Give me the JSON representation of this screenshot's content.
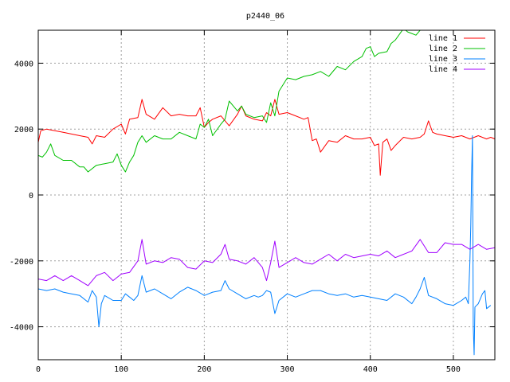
{
  "chart_data": {
    "type": "line",
    "title": "p2440_06",
    "xlabel": "",
    "ylabel": "",
    "xlim": [
      0,
      550
    ],
    "ylim": [
      -5000,
      5000
    ],
    "xticks": [
      0,
      100,
      200,
      300,
      400,
      500
    ],
    "yticks": [
      -4000,
      -2000,
      0,
      2000,
      4000
    ],
    "xtick_labels": [
      "0",
      "100",
      "200",
      "300",
      "400",
      "500"
    ],
    "ytick_labels": [
      "-4000",
      "-2000",
      "0",
      "2000",
      "4000"
    ],
    "grid": true,
    "legend_position": "top-right",
    "series": [
      {
        "name": "line 1",
        "color": "#ff0000",
        "points": [
          [
            0,
            1600
          ],
          [
            3,
            1950
          ],
          [
            10,
            2000
          ],
          [
            20,
            1950
          ],
          [
            30,
            1900
          ],
          [
            40,
            1850
          ],
          [
            50,
            1800
          ],
          [
            60,
            1750
          ],
          [
            65,
            1550
          ],
          [
            70,
            1800
          ],
          [
            80,
            1750
          ],
          [
            90,
            2000
          ],
          [
            100,
            2150
          ],
          [
            105,
            1850
          ],
          [
            110,
            2300
          ],
          [
            120,
            2350
          ],
          [
            125,
            2900
          ],
          [
            130,
            2450
          ],
          [
            140,
            2300
          ],
          [
            150,
            2650
          ],
          [
            160,
            2400
          ],
          [
            170,
            2450
          ],
          [
            180,
            2400
          ],
          [
            190,
            2400
          ],
          [
            195,
            2650
          ],
          [
            200,
            2050
          ],
          [
            205,
            2200
          ],
          [
            210,
            2300
          ],
          [
            220,
            2400
          ],
          [
            230,
            2100
          ],
          [
            240,
            2450
          ],
          [
            245,
            2700
          ],
          [
            250,
            2400
          ],
          [
            260,
            2300
          ],
          [
            270,
            2250
          ],
          [
            275,
            2500
          ],
          [
            280,
            2400
          ],
          [
            285,
            2900
          ],
          [
            290,
            2450
          ],
          [
            300,
            2500
          ],
          [
            310,
            2400
          ],
          [
            320,
            2300
          ],
          [
            325,
            2350
          ],
          [
            330,
            1650
          ],
          [
            335,
            1700
          ],
          [
            340,
            1300
          ],
          [
            350,
            1650
          ],
          [
            360,
            1600
          ],
          [
            370,
            1800
          ],
          [
            380,
            1700
          ],
          [
            390,
            1700
          ],
          [
            400,
            1750
          ],
          [
            405,
            1500
          ],
          [
            410,
            1550
          ],
          [
            412,
            600
          ],
          [
            415,
            1600
          ],
          [
            420,
            1700
          ],
          [
            425,
            1350
          ],
          [
            430,
            1500
          ],
          [
            440,
            1750
          ],
          [
            450,
            1700
          ],
          [
            460,
            1750
          ],
          [
            465,
            1850
          ],
          [
            470,
            2250
          ],
          [
            475,
            1900
          ],
          [
            480,
            1850
          ],
          [
            490,
            1800
          ],
          [
            500,
            1750
          ],
          [
            510,
            1800
          ],
          [
            520,
            1700
          ],
          [
            530,
            1800
          ],
          [
            540,
            1700
          ],
          [
            545,
            1750
          ],
          [
            550,
            1700
          ]
        ]
      },
      {
        "name": "line 2",
        "color": "#00c000",
        "points": [
          [
            0,
            1200
          ],
          [
            5,
            1150
          ],
          [
            10,
            1300
          ],
          [
            15,
            1550
          ],
          [
            20,
            1200
          ],
          [
            30,
            1050
          ],
          [
            40,
            1050
          ],
          [
            50,
            850
          ],
          [
            55,
            850
          ],
          [
            60,
            700
          ],
          [
            70,
            900
          ],
          [
            80,
            950
          ],
          [
            90,
            1000
          ],
          [
            95,
            1250
          ],
          [
            100,
            900
          ],
          [
            105,
            700
          ],
          [
            110,
            1000
          ],
          [
            115,
            1200
          ],
          [
            120,
            1600
          ],
          [
            125,
            1800
          ],
          [
            130,
            1600
          ],
          [
            140,
            1800
          ],
          [
            150,
            1700
          ],
          [
            160,
            1700
          ],
          [
            170,
            1900
          ],
          [
            180,
            1800
          ],
          [
            190,
            1700
          ],
          [
            195,
            2150
          ],
          [
            200,
            2050
          ],
          [
            205,
            2300
          ],
          [
            210,
            1800
          ],
          [
            220,
            2150
          ],
          [
            225,
            2300
          ],
          [
            230,
            2850
          ],
          [
            240,
            2550
          ],
          [
            245,
            2700
          ],
          [
            250,
            2450
          ],
          [
            260,
            2350
          ],
          [
            270,
            2400
          ],
          [
            275,
            2200
          ],
          [
            280,
            2800
          ],
          [
            285,
            2400
          ],
          [
            290,
            3150
          ],
          [
            300,
            3550
          ],
          [
            310,
            3500
          ],
          [
            320,
            3600
          ],
          [
            330,
            3650
          ],
          [
            340,
            3750
          ],
          [
            350,
            3600
          ],
          [
            360,
            3900
          ],
          [
            370,
            3800
          ],
          [
            380,
            4050
          ],
          [
            390,
            4200
          ],
          [
            395,
            4450
          ],
          [
            400,
            4500
          ],
          [
            405,
            4200
          ],
          [
            410,
            4300
          ],
          [
            420,
            4350
          ],
          [
            425,
            4600
          ],
          [
            430,
            4700
          ],
          [
            440,
            5050
          ],
          [
            445,
            4950
          ],
          [
            450,
            4900
          ],
          [
            455,
            4850
          ],
          [
            460,
            5000
          ]
        ]
      },
      {
        "name": "line 3",
        "color": "#0080ff",
        "points": [
          [
            0,
            -2850
          ],
          [
            10,
            -2900
          ],
          [
            20,
            -2850
          ],
          [
            30,
            -2950
          ],
          [
            40,
            -3000
          ],
          [
            50,
            -3050
          ],
          [
            60,
            -3250
          ],
          [
            65,
            -2900
          ],
          [
            70,
            -3100
          ],
          [
            73,
            -4000
          ],
          [
            76,
            -3300
          ],
          [
            80,
            -3050
          ],
          [
            90,
            -3200
          ],
          [
            100,
            -3200
          ],
          [
            105,
            -3000
          ],
          [
            110,
            -3100
          ],
          [
            115,
            -3200
          ],
          [
            120,
            -3050
          ],
          [
            125,
            -2450
          ],
          [
            130,
            -2950
          ],
          [
            140,
            -2850
          ],
          [
            150,
            -3000
          ],
          [
            160,
            -3150
          ],
          [
            170,
            -2950
          ],
          [
            180,
            -2800
          ],
          [
            190,
            -2900
          ],
          [
            200,
            -3050
          ],
          [
            210,
            -2950
          ],
          [
            220,
            -2900
          ],
          [
            225,
            -2600
          ],
          [
            230,
            -2850
          ],
          [
            240,
            -3000
          ],
          [
            250,
            -3150
          ],
          [
            260,
            -3050
          ],
          [
            265,
            -3100
          ],
          [
            270,
            -3050
          ],
          [
            275,
            -2900
          ],
          [
            280,
            -2950
          ],
          [
            285,
            -3600
          ],
          [
            290,
            -3200
          ],
          [
            300,
            -3000
          ],
          [
            310,
            -3100
          ],
          [
            320,
            -3000
          ],
          [
            330,
            -2900
          ],
          [
            340,
            -2900
          ],
          [
            350,
            -3000
          ],
          [
            360,
            -3050
          ],
          [
            370,
            -3000
          ],
          [
            380,
            -3100
          ],
          [
            390,
            -3050
          ],
          [
            400,
            -3100
          ],
          [
            410,
            -3150
          ],
          [
            420,
            -3200
          ],
          [
            430,
            -3000
          ],
          [
            440,
            -3100
          ],
          [
            450,
            -3300
          ],
          [
            455,
            -3100
          ],
          [
            460,
            -2850
          ],
          [
            465,
            -2500
          ],
          [
            470,
            -3050
          ],
          [
            480,
            -3150
          ],
          [
            490,
            -3300
          ],
          [
            500,
            -3350
          ],
          [
            510,
            -3200
          ],
          [
            515,
            -3100
          ],
          [
            518,
            -3300
          ],
          [
            520,
            -2000
          ],
          [
            521,
            -900
          ],
          [
            522,
            600
          ],
          [
            523,
            1800
          ],
          [
            524,
            -4000
          ],
          [
            525,
            -4850
          ],
          [
            526,
            -3400
          ],
          [
            530,
            -3300
          ],
          [
            535,
            -3000
          ],
          [
            538,
            -2900
          ],
          [
            540,
            -3450
          ],
          [
            545,
            -3350
          ]
        ]
      },
      {
        "name": "line 4",
        "color": "#a000ff",
        "points": [
          [
            0,
            -2550
          ],
          [
            10,
            -2600
          ],
          [
            20,
            -2450
          ],
          [
            30,
            -2600
          ],
          [
            40,
            -2450
          ],
          [
            50,
            -2600
          ],
          [
            60,
            -2750
          ],
          [
            70,
            -2450
          ],
          [
            80,
            -2350
          ],
          [
            90,
            -2600
          ],
          [
            100,
            -2400
          ],
          [
            110,
            -2350
          ],
          [
            120,
            -2000
          ],
          [
            125,
            -1350
          ],
          [
            130,
            -2100
          ],
          [
            140,
            -2000
          ],
          [
            150,
            -2050
          ],
          [
            160,
            -1900
          ],
          [
            170,
            -1950
          ],
          [
            180,
            -2200
          ],
          [
            190,
            -2250
          ],
          [
            200,
            -2000
          ],
          [
            210,
            -2050
          ],
          [
            220,
            -1800
          ],
          [
            225,
            -1500
          ],
          [
            230,
            -1950
          ],
          [
            240,
            -2000
          ],
          [
            250,
            -2100
          ],
          [
            260,
            -1900
          ],
          [
            270,
            -2200
          ],
          [
            275,
            -2600
          ],
          [
            280,
            -2050
          ],
          [
            285,
            -1400
          ],
          [
            290,
            -2200
          ],
          [
            300,
            -2050
          ],
          [
            310,
            -1900
          ],
          [
            320,
            -2050
          ],
          [
            330,
            -2100
          ],
          [
            340,
            -1950
          ],
          [
            350,
            -1800
          ],
          [
            360,
            -2000
          ],
          [
            370,
            -1800
          ],
          [
            380,
            -1900
          ],
          [
            390,
            -1850
          ],
          [
            400,
            -1800
          ],
          [
            410,
            -1850
          ],
          [
            420,
            -1700
          ],
          [
            430,
            -1900
          ],
          [
            440,
            -1800
          ],
          [
            450,
            -1700
          ],
          [
            460,
            -1350
          ],
          [
            470,
            -1750
          ],
          [
            480,
            -1750
          ],
          [
            490,
            -1450
          ],
          [
            500,
            -1500
          ],
          [
            510,
            -1500
          ],
          [
            520,
            -1650
          ],
          [
            530,
            -1500
          ],
          [
            540,
            -1650
          ],
          [
            550,
            -1600
          ]
        ]
      }
    ]
  }
}
